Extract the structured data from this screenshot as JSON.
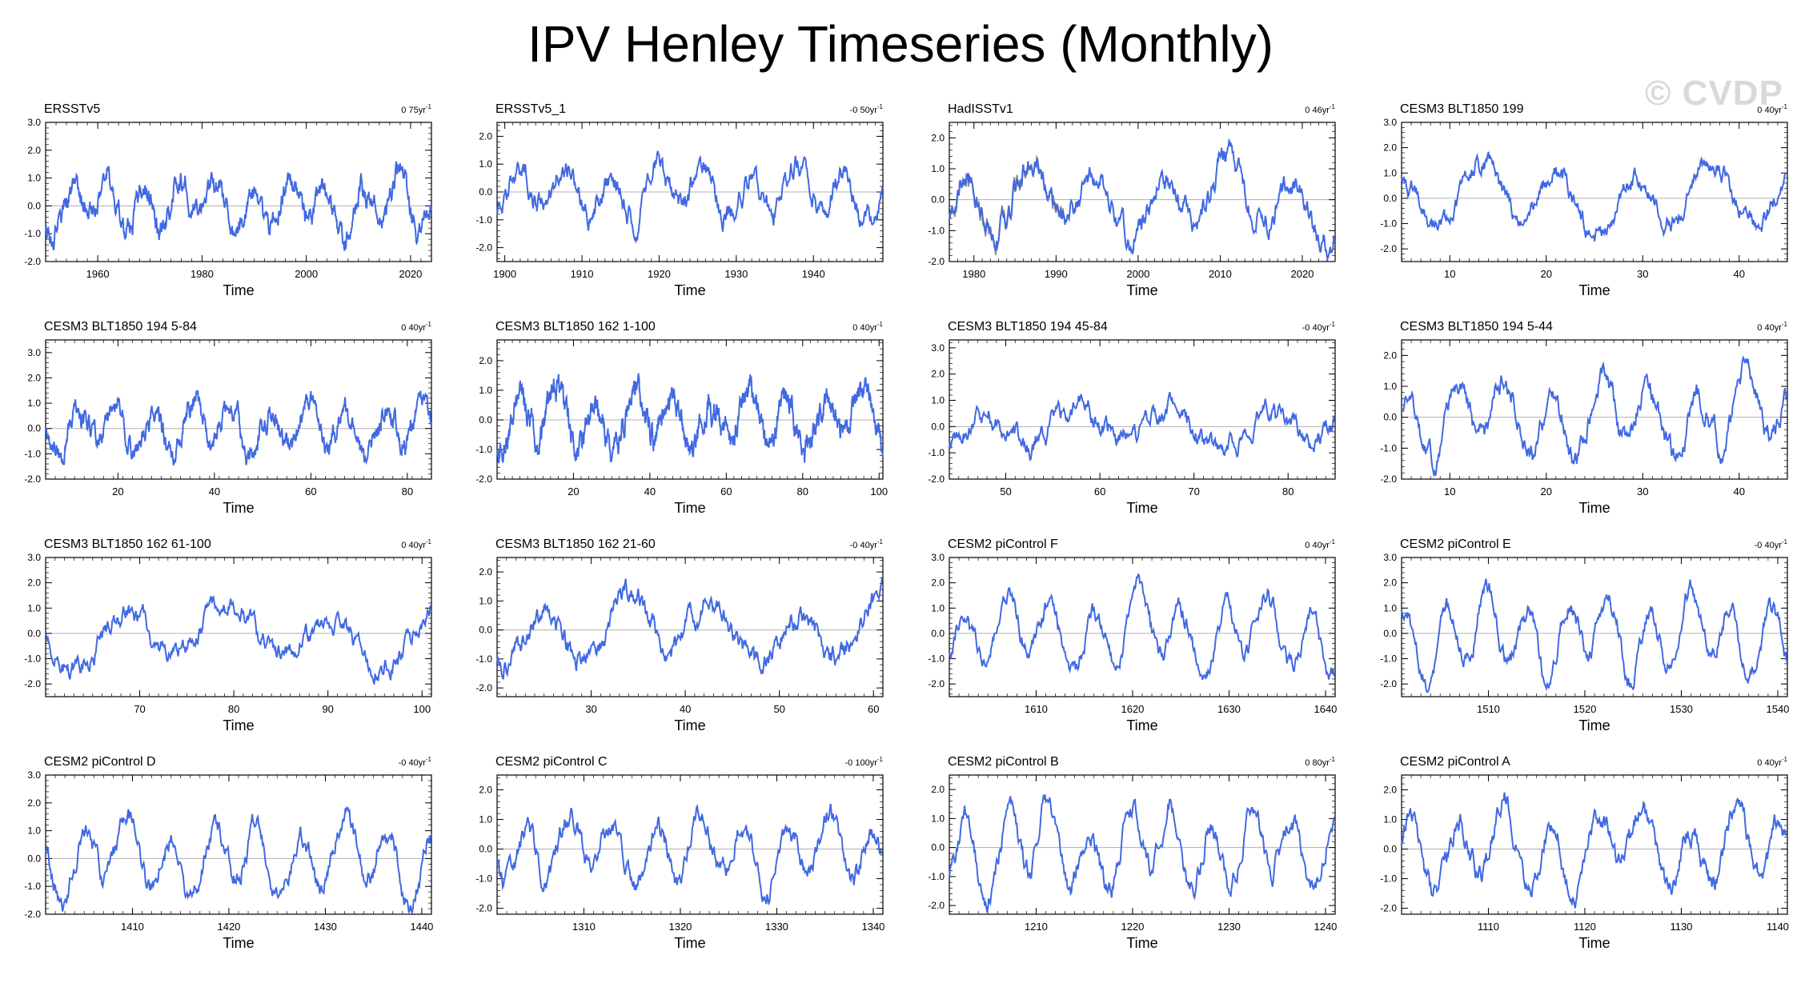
{
  "title": "IPV Henley Timeseries (Monthly)",
  "watermark": "© CVDP",
  "colors": {
    "primary": "#4169e1",
    "secondary": "#8c8c8c",
    "zero_line": "#b0b0b0",
    "axis": "#000000"
  },
  "chart_data": [
    {
      "type": "line",
      "title": "ERSSTv5",
      "trend": "0 75yr",
      "xlabel": "Time",
      "xlim": [
        1950,
        2024
      ],
      "ylim": [
        -2.0,
        3.0
      ],
      "yticks": [
        "3.0",
        "2.0",
        "1.0",
        "0.0",
        "-1.0",
        "-2.0"
      ],
      "xticks": [
        1960,
        1980,
        2000,
        2020
      ],
      "seed": 1,
      "period": 7,
      "amp": 0.75
    },
    {
      "type": "line",
      "title": "ERSSTv5_1",
      "trend": "-0 50yr",
      "xlabel": "Time",
      "xlim": [
        1899,
        1949
      ],
      "ylim": [
        -2.5,
        2.5
      ],
      "yticks": [
        "2.0",
        "1.0",
        "0.0",
        "-1.0",
        "-2.0"
      ],
      "xticks": [
        1900,
        1910,
        1920,
        1930,
        1940
      ],
      "seed": 2,
      "period": 6,
      "amp": 0.7
    },
    {
      "type": "line",
      "title": "HadISSTv1",
      "trend": "0 46yr",
      "xlabel": "Time",
      "xlim": [
        1977,
        2024
      ],
      "ylim": [
        -2.0,
        2.5
      ],
      "yticks": [
        "2.0",
        "1.0",
        "0.0",
        "-1.0",
        "-2.0"
      ],
      "xticks": [
        1980,
        1990,
        2000,
        2010,
        2020
      ],
      "seed": 3,
      "period": 8,
      "amp": 0.9,
      "secondary_series": true
    },
    {
      "type": "line",
      "title": "CESM3 BLT1850 199",
      "trend": "0 40yr",
      "xlabel": "Time",
      "xlim": [
        5,
        45
      ],
      "ylim": [
        -2.5,
        3.0
      ],
      "yticks": [
        "3.0",
        "2.0",
        "1.0",
        "0.0",
        "-1.0",
        "-2.0"
      ],
      "xticks": [
        10,
        20,
        30,
        40
      ],
      "seed": 4,
      "period": 8,
      "amp": 1.0
    },
    {
      "type": "line",
      "title": "CESM3 BLT1850 194 5-84",
      "trend": "0 40yr",
      "xlabel": "Time",
      "xlim": [
        5,
        85
      ],
      "ylim": [
        -2.0,
        3.5
      ],
      "yticks": [
        "3.0",
        "2.0",
        "1.0",
        "0.0",
        "-1.0",
        "-2.0"
      ],
      "xticks": [
        20,
        40,
        60,
        80
      ],
      "seed": 5,
      "period": 8,
      "amp": 0.8
    },
    {
      "type": "line",
      "title": "CESM3 BLT1850 162 1-100",
      "trend": "0 40yr",
      "xlabel": "Time",
      "xlim": [
        0,
        101
      ],
      "ylim": [
        -2.0,
        2.7
      ],
      "yticks": [
        "2.0",
        "1.0",
        "0.0",
        "-1.0",
        "-2.0"
      ],
      "xticks": [
        20,
        40,
        60,
        80,
        100
      ],
      "seed": 6,
      "period": 10,
      "amp": 0.8
    },
    {
      "type": "line",
      "title": "CESM3 BLT1850 194 45-84",
      "trend": "-0 40yr",
      "xlabel": "Time",
      "xlim": [
        44,
        85
      ],
      "ylim": [
        -2.0,
        3.3
      ],
      "yticks": [
        "3.0",
        "2.0",
        "1.0",
        "0.0",
        "-1.0",
        "-2.0"
      ],
      "xticks": [
        50,
        60,
        70,
        80
      ],
      "seed": 7,
      "period": 10,
      "amp": 0.65
    },
    {
      "type": "line",
      "title": "CESM3 BLT1850 194 5-44",
      "trend": "0 40yr",
      "xlabel": "Time",
      "xlim": [
        5,
        45
      ],
      "ylim": [
        -2.0,
        2.5
      ],
      "yticks": [
        "2.0",
        "1.0",
        "0.0",
        "-1.0",
        "-2.0"
      ],
      "xticks": [
        10,
        20,
        30,
        40
      ],
      "seed": 8,
      "period": 5,
      "amp": 1.0
    },
    {
      "type": "line",
      "title": "CESM3 BLT1850 162 61-100",
      "trend": "0 40yr",
      "xlabel": "Time",
      "xlim": [
        60,
        101
      ],
      "ylim": [
        -2.5,
        3.0
      ],
      "yticks": [
        "3.0",
        "2.0",
        "1.0",
        "0.0",
        "-1.0",
        "-2.0"
      ],
      "xticks": [
        70,
        80,
        90,
        100
      ],
      "seed": 9,
      "period": 11,
      "amp": 1.0
    },
    {
      "type": "line",
      "title": "CESM3 BLT1850 162 21-60",
      "trend": "-0 40yr",
      "xlabel": "Time",
      "xlim": [
        20,
        61
      ],
      "ylim": [
        -2.3,
        2.5
      ],
      "yticks": [
        "2.0",
        "1.0",
        "0.0",
        "-1.0",
        "-2.0"
      ],
      "xticks": [
        30,
        40,
        50,
        60
      ],
      "seed": 10,
      "period": 9,
      "amp": 0.9
    },
    {
      "type": "line",
      "title": "CESM2 piControl F",
      "trend": "0 40yr",
      "xlabel": "Time",
      "xlim": [
        1601,
        1641
      ],
      "ylim": [
        -2.5,
        3.0
      ],
      "yticks": [
        "3.0",
        "2.0",
        "1.0",
        "0.0",
        "-1.0",
        "-2.0"
      ],
      "xticks": [
        1610,
        1620,
        1630,
        1640
      ],
      "seed": 11,
      "period": 4.5,
      "amp": 1.2
    },
    {
      "type": "line",
      "title": "CESM2 piControl E",
      "trend": "-0 40yr",
      "xlabel": "Time",
      "xlim": [
        1501,
        1541
      ],
      "ylim": [
        -2.5,
        3.0
      ],
      "yticks": [
        "3.0",
        "2.0",
        "1.0",
        "0.0",
        "-1.0",
        "-2.0"
      ],
      "xticks": [
        1510,
        1520,
        1530,
        1540
      ],
      "seed": 12,
      "period": 4.2,
      "amp": 1.3
    },
    {
      "type": "line",
      "title": "CESM2 piControl D",
      "trend": "-0 40yr",
      "xlabel": "Time",
      "xlim": [
        1401,
        1441
      ],
      "ylim": [
        -2.0,
        3.0
      ],
      "yticks": [
        "3.0",
        "2.0",
        "1.0",
        "0.0",
        "-1.0",
        "-2.0"
      ],
      "xticks": [
        1410,
        1420,
        1430,
        1440
      ],
      "seed": 13,
      "period": 4.5,
      "amp": 1.1
    },
    {
      "type": "line",
      "title": "CESM2 piControl C",
      "trend": "-0 100yr",
      "xlabel": "Time",
      "xlim": [
        1301,
        1341
      ],
      "ylim": [
        -2.2,
        2.5
      ],
      "yticks": [
        "2.0",
        "1.0",
        "0.0",
        "-1.0",
        "-2.0"
      ],
      "xticks": [
        1310,
        1320,
        1330,
        1340
      ],
      "seed": 14,
      "period": 4.5,
      "amp": 1.0
    },
    {
      "type": "line",
      "title": "CESM2 piControl B",
      "trend": "0 80yr",
      "xlabel": "Time",
      "xlim": [
        1201,
        1241
      ],
      "ylim": [
        -2.3,
        2.5
      ],
      "yticks": [
        "2.0",
        "1.0",
        "0.0",
        "-1.0",
        "-2.0"
      ],
      "xticks": [
        1210,
        1220,
        1230,
        1240
      ],
      "seed": 15,
      "period": 4.2,
      "amp": 1.2
    },
    {
      "type": "line",
      "title": "CESM2 piControl A",
      "trend": "0 40yr",
      "xlabel": "Time",
      "xlim": [
        1101,
        1141
      ],
      "ylim": [
        -2.2,
        2.5
      ],
      "yticks": [
        "2.0",
        "1.0",
        "0.0",
        "-1.0",
        "-2.0"
      ],
      "xticks": [
        1110,
        1120,
        1130,
        1140
      ],
      "seed": 16,
      "period": 4.8,
      "amp": 1.1
    }
  ]
}
